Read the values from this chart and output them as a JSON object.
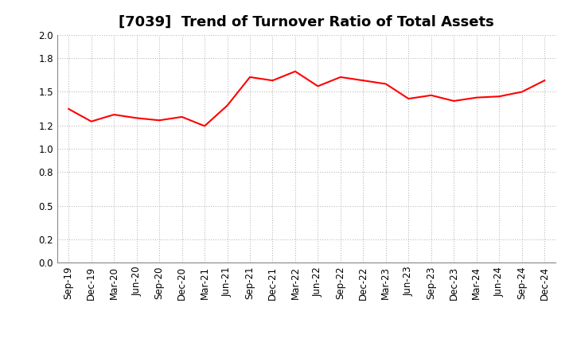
{
  "title": "[7039]  Trend of Turnover Ratio of Total Assets",
  "x_labels": [
    "Sep-19",
    "Dec-19",
    "Mar-20",
    "Jun-20",
    "Sep-20",
    "Dec-20",
    "Mar-21",
    "Jun-21",
    "Sep-21",
    "Dec-21",
    "Mar-22",
    "Jun-22",
    "Sep-22",
    "Dec-22",
    "Mar-23",
    "Jun-23",
    "Sep-23",
    "Dec-23",
    "Mar-24",
    "Jun-24",
    "Sep-24",
    "Dec-24"
  ],
  "y_values": [
    1.35,
    1.24,
    1.3,
    1.27,
    1.25,
    1.28,
    1.2,
    1.38,
    1.63,
    1.6,
    1.68,
    1.55,
    1.63,
    1.6,
    1.57,
    1.44,
    1.47,
    1.42,
    1.45,
    1.46,
    1.5,
    1.6
  ],
  "line_color": "#FF0000",
  "line_width": 1.5,
  "ylim": [
    0.0,
    2.0
  ],
  "yticks": [
    0.0,
    0.2,
    0.5,
    0.8,
    1.0,
    1.2,
    1.5,
    1.8,
    2.0
  ],
  "background_color": "#FFFFFF",
  "grid_color": "#AAAAAA",
  "title_fontsize": 13,
  "tick_fontsize": 8.5
}
